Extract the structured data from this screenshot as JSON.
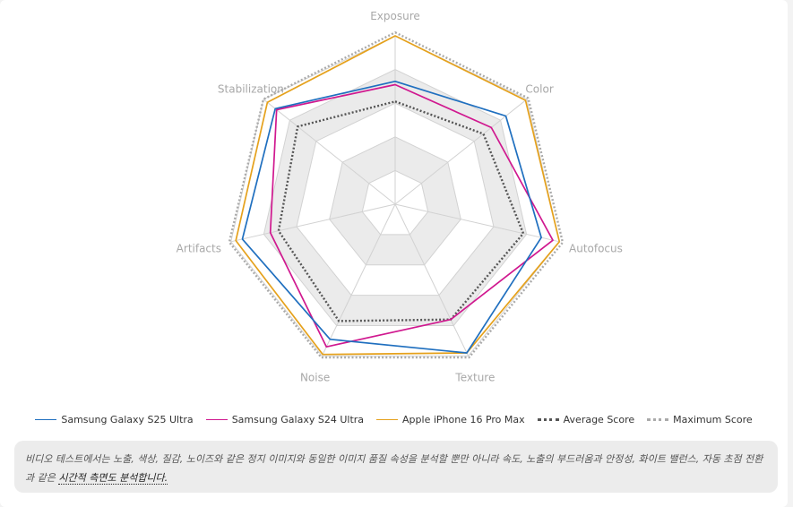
{
  "chart_data": {
    "type": "radar",
    "title": "",
    "axes": [
      "Exposure",
      "Color",
      "Autofocus",
      "Texture",
      "Noise",
      "Artifacts",
      "Stabilization"
    ],
    "rlim": [
      0,
      100
    ],
    "grid": true,
    "legend_position": "bottom",
    "series": [
      {
        "name": "Samsung Galaxy S25 Ultra",
        "color": "#1f6fbf",
        "style": "solid",
        "values": [
          73,
          84,
          89,
          98,
          89,
          93,
          91
        ]
      },
      {
        "name": "Samsung Galaxy S24 Ultra",
        "color": "#d0188f",
        "style": "solid",
        "values": [
          71,
          73,
          96,
          76,
          94,
          76,
          90
        ]
      },
      {
        "name": "Apple iPhone 16 Pro Max",
        "color": "#e5a11c",
        "style": "solid",
        "values": [
          100,
          99,
          100,
          98,
          99,
          97,
          97
        ]
      },
      {
        "name": "Average Score",
        "color": "#555555",
        "style": "dotted",
        "values": [
          61,
          67,
          78,
          76,
          77,
          71,
          74
        ]
      },
      {
        "name": "Maximum Score",
        "color": "#aaaaaa",
        "style": "dotted",
        "values": [
          102,
          101,
          102,
          101,
          101,
          101,
          100
        ]
      }
    ]
  },
  "note": {
    "text": "비디오 테스트에서는 노출, 색상, 질감, 노이즈와 같은 정지 이미지와 동일한 이미지 품질 속성을 분석할 뿐만 아니라 속도, 노출의 부드러움과 안정성, 화이트 밸런스, 자동 초점 전환과 같은 ",
    "emphasis": "시간적 측면도 분석합니다."
  }
}
